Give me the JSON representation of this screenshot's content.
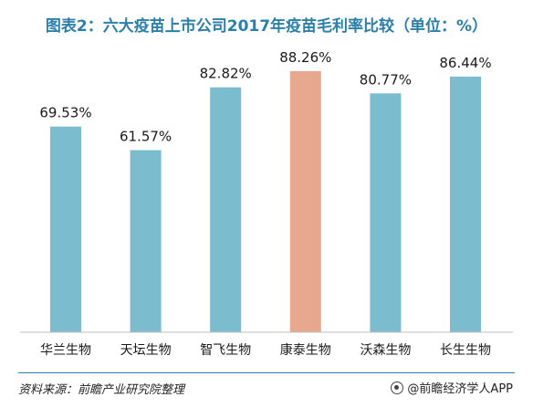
{
  "title": "图表2：六大疫苗上市公司2017年疫苗毛利率比较（单位：%）",
  "source": "资料来源：前瞻产业研究院整理",
  "brand": "@前瞻经济学人APP",
  "colors": {
    "bar": "#7bbccf",
    "highlight": "#e8a890",
    "axis": "#bfbfbf",
    "title": "#2b7fa8"
  },
  "chart_data": {
    "type": "bar",
    "title": "图表2：六大疫苗上市公司2017年疫苗毛利率比较（单位：%）",
    "xlabel": "",
    "ylabel": "",
    "categories": [
      "华兰生物",
      "天坛生物",
      "智飞生物",
      "康泰生物",
      "沃森生物",
      "长生生物"
    ],
    "values": [
      69.53,
      61.57,
      82.82,
      88.26,
      80.77,
      86.44
    ],
    "labels": [
      "69.53%",
      "61.57%",
      "82.82%",
      "88.26%",
      "80.77%",
      "86.44%"
    ],
    "highlight_index": 3,
    "ylim": [
      0,
      100
    ],
    "grid": false,
    "legend": "none"
  }
}
